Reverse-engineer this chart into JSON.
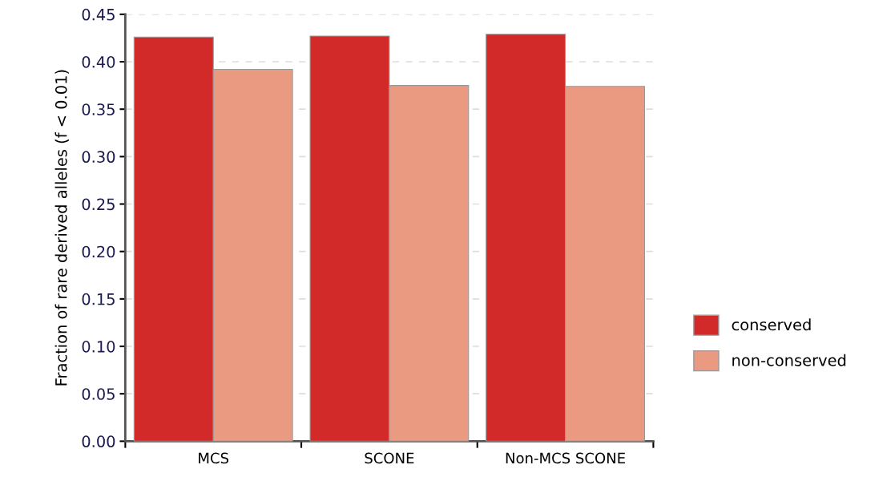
{
  "chart_data": {
    "type": "bar",
    "ylabel": "Fraction of rare derived alleles (f < 0.01)",
    "categories": [
      "MCS",
      "SCONE",
      "Non-MCS SCONE"
    ],
    "series": [
      {
        "name": "conserved",
        "color": "#d12a28",
        "values": [
          0.426,
          0.427,
          0.429
        ]
      },
      {
        "name": "non-conserved",
        "color": "#e99a80",
        "values": [
          0.392,
          0.375,
          0.374
        ]
      }
    ],
    "ylim": [
      0,
      0.45
    ],
    "yticks": [
      {
        "value": 0,
        "label": "0.00"
      },
      {
        "value": 0.05,
        "label": "0.05"
      },
      {
        "value": 0.1,
        "label": "0.10"
      },
      {
        "value": 0.15,
        "label": "0.15"
      },
      {
        "value": 0.2,
        "label": "0.20"
      },
      {
        "value": 0.25,
        "label": "0.25"
      },
      {
        "value": 0.3,
        "label": "0.30"
      },
      {
        "value": 0.35,
        "label": "0.35"
      },
      {
        "value": 0.4,
        "label": "0.40"
      },
      {
        "value": 0.45,
        "label": "0.45"
      }
    ],
    "grid": "y",
    "legend": "right"
  }
}
